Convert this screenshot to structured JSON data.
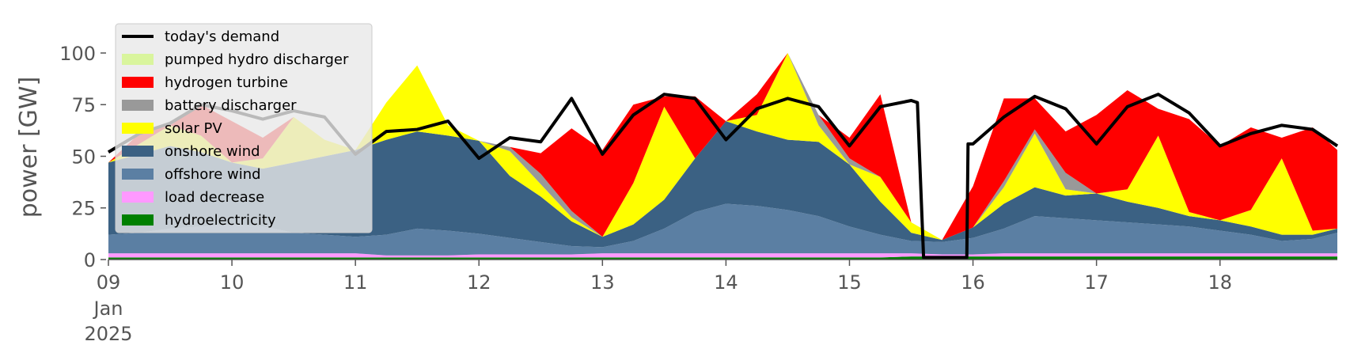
{
  "chart_data": {
    "type": "area",
    "stacked": true,
    "ylabel": "power [GW]",
    "xlabel": "",
    "ylim": [
      0,
      118
    ],
    "xlim": [
      0,
      9.95
    ],
    "grid": false,
    "legend_position": "top-left",
    "x_ticks": [
      {
        "value": 0,
        "label": "09",
        "sublabels": [
          "Jan",
          "2025"
        ]
      },
      {
        "value": 1,
        "label": "10"
      },
      {
        "value": 2,
        "label": "11"
      },
      {
        "value": 3,
        "label": "12"
      },
      {
        "value": 4,
        "label": "13"
      },
      {
        "value": 5,
        "label": "14"
      },
      {
        "value": 6,
        "label": "15"
      },
      {
        "value": 7,
        "label": "16"
      },
      {
        "value": 8,
        "label": "17"
      },
      {
        "value": 9,
        "label": "18"
      }
    ],
    "y_ticks": [
      {
        "value": 0,
        "label": "0"
      },
      {
        "value": 25,
        "label": "25"
      },
      {
        "value": 50,
        "label": "50"
      },
      {
        "value": 75,
        "label": "75"
      },
      {
        "value": 100,
        "label": "100"
      }
    ],
    "x": [
      0,
      0.25,
      0.5,
      0.75,
      1,
      1.25,
      1.5,
      1.75,
      2,
      2.25,
      2.5,
      2.75,
      3,
      3.25,
      3.5,
      3.75,
      4,
      4.25,
      4.5,
      4.75,
      5,
      5.25,
      5.5,
      5.75,
      6,
      6.25,
      6.5,
      6.75,
      7,
      7.25,
      7.5,
      7.75,
      8,
      8.25,
      8.5,
      8.75,
      9,
      9.25,
      9.5,
      9.75,
      9.95
    ],
    "series": [
      {
        "name": "hydroelectricity",
        "color": "#008000",
        "values": [
          1,
          1,
          1,
          1,
          1,
          1,
          1,
          1,
          1,
          1,
          1,
          1,
          1,
          1,
          1,
          1,
          1,
          1,
          1,
          1,
          1,
          1,
          1,
          1,
          1,
          1,
          1.5,
          1.5,
          1.5,
          1.5,
          1.5,
          1.5,
          1.5,
          1.5,
          1.5,
          1.5,
          1.5,
          1.5,
          1.5,
          1.5,
          1.5
        ]
      },
      {
        "name": "load decrease",
        "color": "#ff99ff",
        "values": [
          2,
          2,
          2,
          2,
          2,
          2,
          2,
          2,
          2,
          1,
          1,
          1,
          1.5,
          1.5,
          1.5,
          1.5,
          2,
          2,
          2,
          2,
          2,
          2,
          2,
          2,
          2,
          2,
          1.5,
          1,
          1,
          1.5,
          1.5,
          1.5,
          1.5,
          1.5,
          1.5,
          1.5,
          1.5,
          1.5,
          1.5,
          1.5,
          1.5
        ]
      },
      {
        "name": "offshore wind",
        "color": "#5b7fa3",
        "values": [
          9,
          10,
          12,
          13,
          14,
          13,
          10,
          9,
          8,
          10,
          13,
          12,
          10,
          8,
          6,
          4,
          3,
          6,
          12,
          20,
          24,
          23,
          21,
          18,
          13,
          9,
          6,
          6,
          8,
          12,
          18,
          17,
          16,
          15,
          14,
          13,
          11,
          9,
          6,
          7,
          10
        ]
      },
      {
        "name": "onshore wind",
        "color": "#3b6183",
        "values": [
          35,
          38,
          40,
          36,
          30,
          28,
          34,
          38,
          42,
          46,
          47,
          46,
          45,
          30,
          22,
          12,
          5,
          8,
          14,
          26,
          40,
          36,
          34,
          36,
          30,
          16,
          4,
          1,
          5,
          12,
          14,
          11,
          13,
          10,
          8,
          5,
          5,
          4,
          3,
          2,
          2
        ]
      },
      {
        "name": "solar PV",
        "color": "#ffff00",
        "values": [
          0,
          5,
          10,
          8,
          0,
          5,
          22,
          8,
          0,
          18,
          32,
          5,
          0,
          12,
          6,
          2,
          0,
          20,
          45,
          0,
          0,
          8,
          42,
          8,
          0,
          12,
          5,
          0,
          0,
          8,
          26,
          3,
          0,
          6,
          35,
          2,
          0,
          8,
          37,
          2,
          0
        ]
      },
      {
        "name": "battery discharger",
        "color": "#999999",
        "values": [
          0,
          0,
          0,
          0,
          0,
          0,
          0,
          0,
          0,
          0,
          0,
          0,
          0,
          2,
          5,
          3,
          0,
          0,
          0,
          0,
          0,
          0,
          0,
          5,
          3,
          0,
          0,
          0,
          0,
          3,
          2,
          8,
          0,
          0,
          0,
          0,
          0,
          0,
          0,
          0,
          0
        ]
      },
      {
        "name": "hydrogen turbine",
        "color": "#ff0000",
        "values": [
          0,
          5,
          0,
          15,
          20,
          10,
          0,
          0,
          0,
          0,
          0,
          0,
          0,
          0,
          10,
          40,
          42,
          38,
          5,
          30,
          0,
          10,
          0,
          0,
          10,
          40,
          0,
          0,
          20,
          40,
          15,
          20,
          38,
          48,
          13,
          45,
          36,
          40,
          10,
          50,
          38
        ]
      },
      {
        "name": "pumped hydro discharger",
        "color": "#d9f59d",
        "values": [
          0,
          0,
          0,
          0,
          0,
          0,
          0,
          0,
          0,
          0,
          0,
          0,
          0,
          0,
          0,
          0,
          0,
          0,
          0,
          0,
          0,
          0,
          0,
          0,
          0,
          0,
          0,
          0,
          0,
          0,
          0,
          0,
          0,
          0,
          0,
          0,
          0,
          0,
          0,
          0,
          0
        ]
      }
    ],
    "demand": {
      "name": "today's demand",
      "color": "#000000",
      "x": [
        0,
        0.25,
        0.5,
        0.75,
        1,
        1.25,
        1.5,
        1.75,
        2,
        2.25,
        2.5,
        2.75,
        3,
        3.25,
        3.5,
        3.75,
        4,
        4.25,
        4.5,
        4.75,
        5,
        5.25,
        5.5,
        5.75,
        6,
        6.25,
        6.5,
        6.55,
        6.6,
        6.95,
        6.96,
        7,
        7.25,
        7.5,
        7.75,
        8,
        8.25,
        8.5,
        8.75,
        9,
        9.25,
        9.5,
        9.75,
        9.95
      ],
      "values": [
        52,
        61,
        66,
        75,
        72,
        68,
        72,
        69,
        51,
        62,
        63,
        67,
        49,
        59,
        57,
        78,
        51,
        70,
        80,
        78,
        58,
        73,
        78,
        74,
        55,
        74,
        77,
        76,
        1,
        1,
        56,
        56,
        69,
        79,
        73,
        56,
        74,
        80,
        71,
        55,
        61,
        65,
        63,
        55
      ]
    },
    "legend_order": [
      "today's demand",
      "pumped hydro discharger",
      "hydrogen turbine",
      "battery discharger",
      "solar PV",
      "onshore wind",
      "offshore wind",
      "load decrease",
      "hydroelectricity"
    ]
  }
}
